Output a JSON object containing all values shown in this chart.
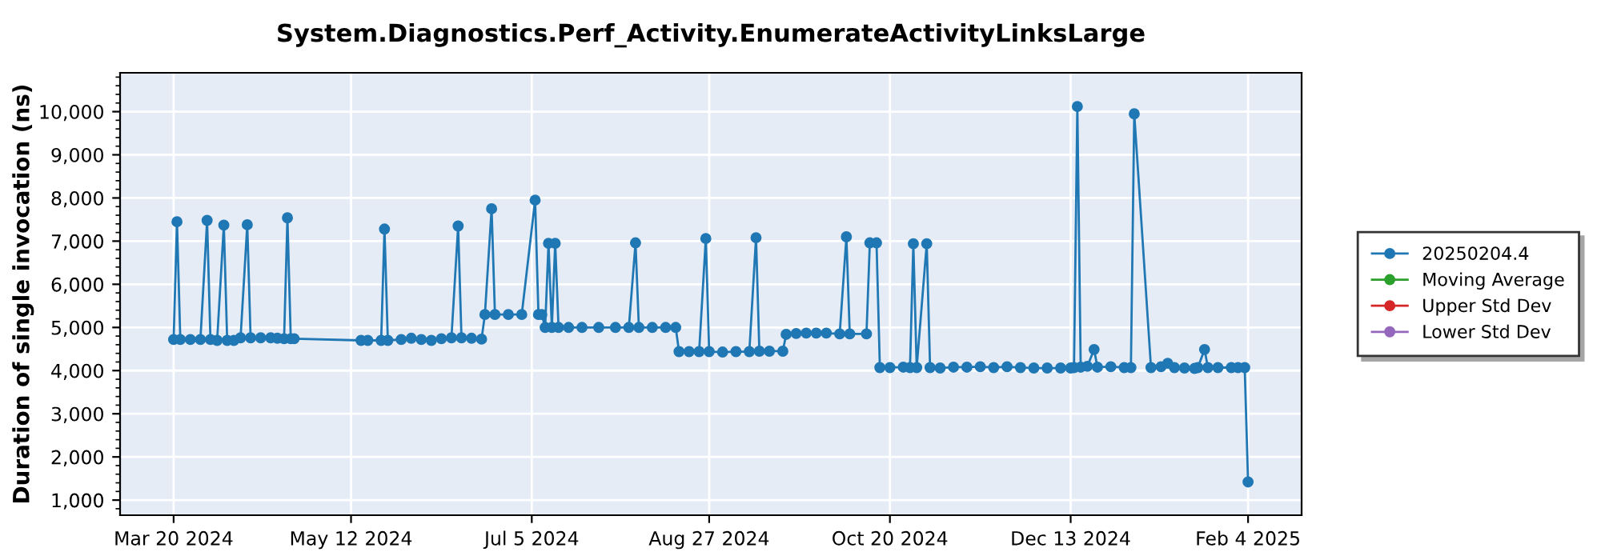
{
  "chart_data": {
    "type": "line",
    "title": "System.Diagnostics.Perf_Activity.EnumerateActivityLinksLarge",
    "ylabel": "Duration of single invocation (ns)",
    "series": [
      {
        "name": "20250204.4",
        "color": "#1f77b4",
        "x": [
          "2024-03-20",
          "2024-03-21",
          "2024-03-22",
          "2024-03-25",
          "2024-03-28",
          "2024-03-30",
          "2024-03-31",
          "2024-04-02",
          "2024-04-04",
          "2024-04-05",
          "2024-04-07",
          "2024-04-09",
          "2024-04-11",
          "2024-04-12",
          "2024-04-15",
          "2024-04-18",
          "2024-04-20",
          "2024-04-22",
          "2024-04-23",
          "2024-04-24",
          "2024-04-25",
          "2024-05-15",
          "2024-05-17",
          "2024-05-21",
          "2024-05-22",
          "2024-05-23",
          "2024-05-27",
          "2024-05-30",
          "2024-06-02",
          "2024-06-05",
          "2024-06-08",
          "2024-06-11",
          "2024-06-13",
          "2024-06-14",
          "2024-06-17",
          "2024-06-20",
          "2024-06-21",
          "2024-06-23",
          "2024-06-24",
          "2024-06-28",
          "2024-07-02",
          "2024-07-06",
          "2024-07-07",
          "2024-07-08",
          "2024-07-09",
          "2024-07-10",
          "2024-07-11",
          "2024-07-12",
          "2024-07-13",
          "2024-07-16",
          "2024-07-20",
          "2024-07-25",
          "2024-07-30",
          "2024-08-03",
          "2024-08-05",
          "2024-08-06",
          "2024-08-10",
          "2024-08-14",
          "2024-08-17",
          "2024-08-18",
          "2024-08-21",
          "2024-08-24",
          "2024-08-26",
          "2024-08-27",
          "2024-08-31",
          "2024-09-04",
          "2024-09-08",
          "2024-09-10",
          "2024-09-11",
          "2024-09-14",
          "2024-09-18",
          "2024-09-19",
          "2024-09-22",
          "2024-09-25",
          "2024-09-28",
          "2024-10-01",
          "2024-10-05",
          "2024-10-07",
          "2024-10-08",
          "2024-10-13",
          "2024-10-14",
          "2024-10-16",
          "2024-10-17",
          "2024-10-20",
          "2024-10-24",
          "2024-10-26",
          "2024-10-27",
          "2024-10-28",
          "2024-10-31",
          "2024-11-01",
          "2024-11-04",
          "2024-11-08",
          "2024-11-12",
          "2024-11-16",
          "2024-11-20",
          "2024-11-24",
          "2024-11-28",
          "2024-12-02",
          "2024-12-06",
          "2024-12-10",
          "2024-12-13",
          "2024-12-14",
          "2024-12-15",
          "2024-12-16",
          "2024-12-18",
          "2024-12-20",
          "2024-12-21",
          "2024-12-25",
          "2024-12-29",
          "2024-12-31",
          "2025-01-01",
          "2025-01-06",
          "2025-01-09",
          "2025-01-11",
          "2025-01-13",
          "2025-01-16",
          "2025-01-19",
          "2025-01-20",
          "2025-01-22",
          "2025-01-23",
          "2025-01-26",
          "2025-01-30",
          "2025-02-01",
          "2025-02-03",
          "2025-02-04"
        ],
        "values": [
          4720,
          7450,
          4720,
          4720,
          4720,
          7480,
          4720,
          4700,
          7370,
          4700,
          4700,
          4760,
          7380,
          4760,
          4760,
          4760,
          4750,
          4740,
          7540,
          4740,
          4740,
          4700,
          4700,
          4700,
          7280,
          4700,
          4720,
          4750,
          4720,
          4700,
          4740,
          4760,
          7350,
          4760,
          4750,
          4730,
          5300,
          7750,
          5300,
          5300,
          5300,
          7950,
          5300,
          5300,
          5000,
          6950,
          5000,
          6950,
          5000,
          5000,
          5000,
          5000,
          5000,
          5000,
          6960,
          5000,
          5000,
          5000,
          5000,
          4440,
          4440,
          4440,
          7060,
          4440,
          4430,
          4440,
          4440,
          7080,
          4450,
          4450,
          4450,
          4840,
          4860,
          4870,
          4870,
          4870,
          4850,
          7100,
          4850,
          4850,
          6960,
          6960,
          4070,
          4070,
          4080,
          4070,
          6940,
          4070,
          6940,
          4070,
          4060,
          4080,
          4080,
          4090,
          4070,
          4090,
          4070,
          4060,
          4060,
          4060,
          4060,
          4070,
          10120,
          4080,
          4100,
          4490,
          4080,
          4090,
          4070,
          4070,
          9950,
          4070,
          4090,
          4170,
          4070,
          4060,
          4050,
          4070,
          4490,
          4070,
          4070,
          4070,
          4070,
          4070,
          1420
        ]
      },
      {
        "name": "Moving Average",
        "color": "#2ca02c"
      },
      {
        "name": "Upper Std Dev",
        "color": "#d62728"
      },
      {
        "name": "Lower Std Dev",
        "color": "#9467bd"
      }
    ],
    "xlim": [
      "2024-03-04",
      "2025-02-20"
    ],
    "xticks": [
      {
        "value": "2024-03-20",
        "label": "Mar 20 2024"
      },
      {
        "value": "2024-05-12",
        "label": "May 12 2024"
      },
      {
        "value": "2024-07-05",
        "label": "Jul 5 2024"
      },
      {
        "value": "2024-08-27",
        "label": "Aug 27 2024"
      },
      {
        "value": "2024-10-20",
        "label": "Oct 20 2024"
      },
      {
        "value": "2024-12-13",
        "label": "Dec 13 2024"
      },
      {
        "value": "2025-02-04",
        "label": "Feb 4 2025"
      }
    ],
    "ylim": [
      650,
      10900
    ],
    "yticks": [
      {
        "value": 1000,
        "label": "1,000"
      },
      {
        "value": 2000,
        "label": "2,000"
      },
      {
        "value": 3000,
        "label": "3,000"
      },
      {
        "value": 4000,
        "label": "4,000"
      },
      {
        "value": 5000,
        "label": "5,000"
      },
      {
        "value": 6000,
        "label": "6,000"
      },
      {
        "value": 7000,
        "label": "7,000"
      },
      {
        "value": 8000,
        "label": "8,000"
      },
      {
        "value": 9000,
        "label": "9,000"
      },
      {
        "value": 10000,
        "label": "10,000"
      }
    ],
    "grid": true,
    "legend": "right",
    "marker": "circle",
    "line_style": "solid"
  }
}
